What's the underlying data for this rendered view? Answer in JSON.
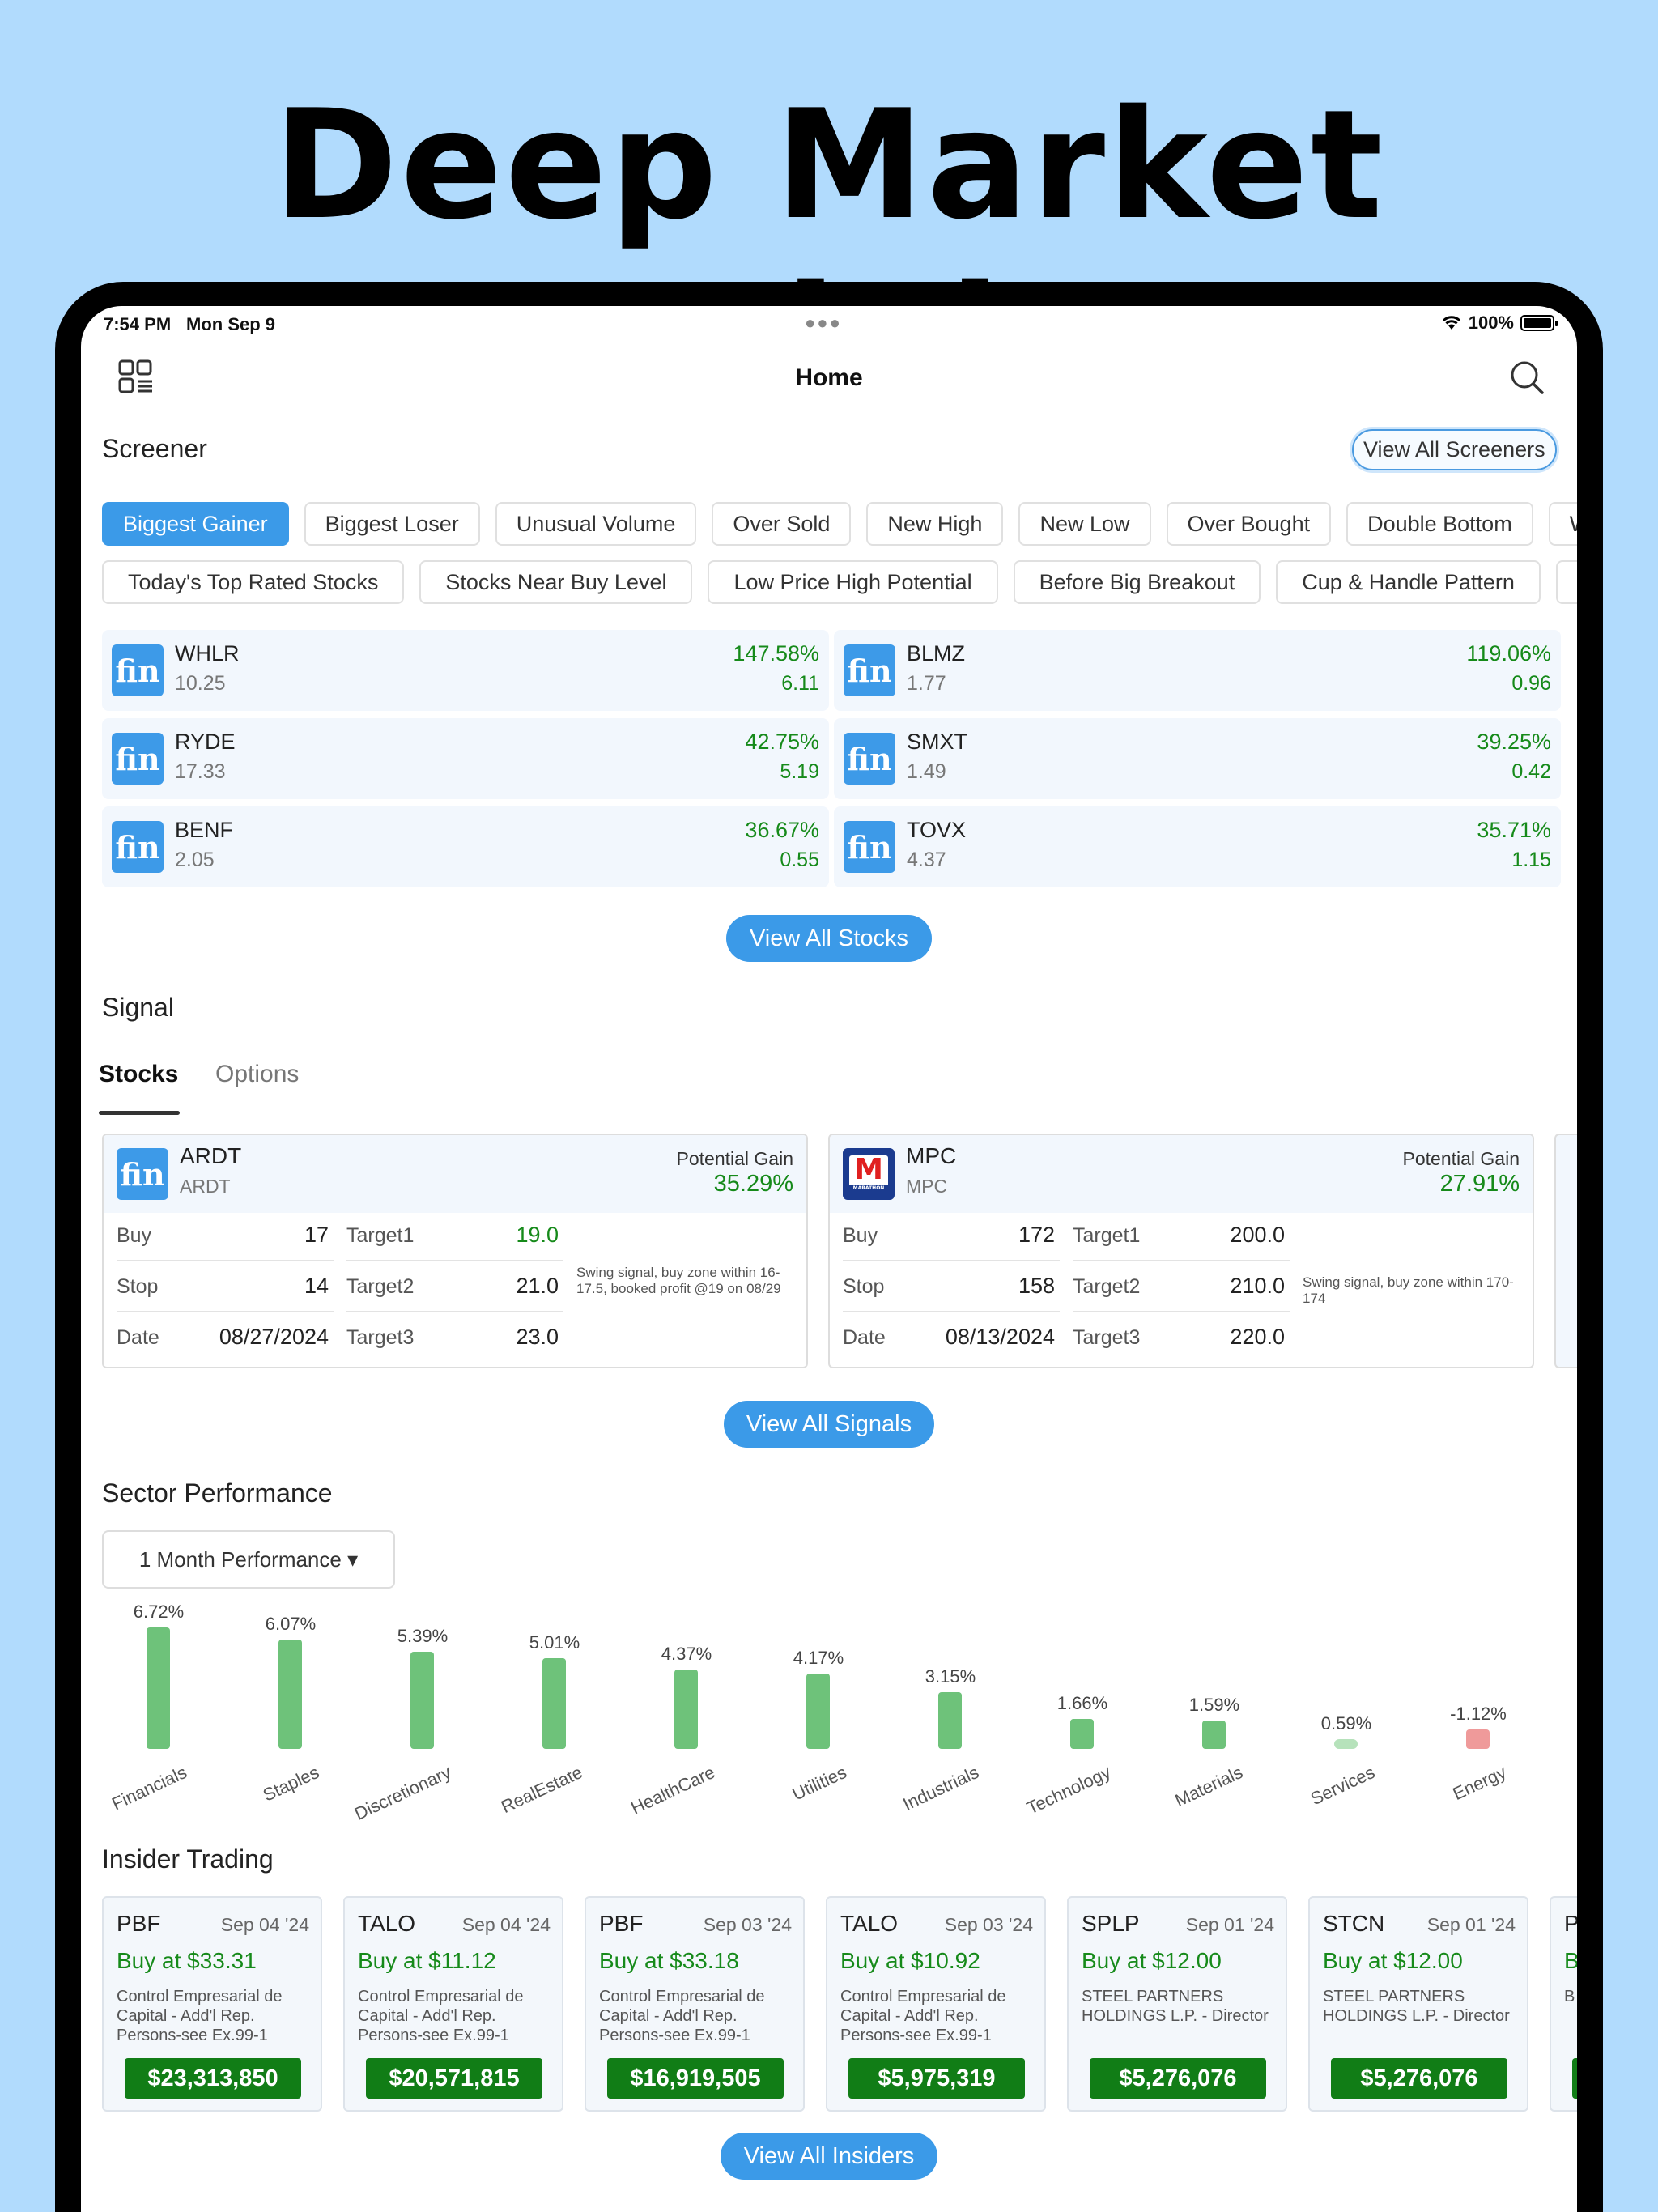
{
  "headline": "Deep Market Insight",
  "status": {
    "time": "7:54 PM",
    "date": "Mon Sep 9",
    "battery": "100%"
  },
  "nav": {
    "title": "Home"
  },
  "screener": {
    "title": "Screener",
    "view_all": "View All Screeners",
    "chips_row1": [
      "Biggest Gainer",
      "Biggest Loser",
      "Unusual Volume",
      "Over Sold",
      "New High",
      "New Low",
      "Over Bought",
      "Double Bottom",
      "W"
    ],
    "chips_row2": [
      "Today's Top Rated Stocks",
      "Stocks Near Buy Level",
      "Low Price High Potential",
      "Before Big Breakout",
      "Cup & Handle Pattern"
    ],
    "stocks": [
      {
        "symbol": "WHLR",
        "price": "10.25",
        "pct": "147.58%",
        "change": "6.11"
      },
      {
        "symbol": "BLMZ",
        "price": "1.77",
        "pct": "119.06%",
        "change": "0.96"
      },
      {
        "symbol": "RYDE",
        "price": "17.33",
        "pct": "42.75%",
        "change": "5.19"
      },
      {
        "symbol": "SMXT",
        "price": "1.49",
        "pct": "39.25%",
        "change": "0.42"
      },
      {
        "symbol": "BENF",
        "price": "2.05",
        "pct": "36.67%",
        "change": "0.55"
      },
      {
        "symbol": "TOVX",
        "price": "4.37",
        "pct": "35.71%",
        "change": "1.15"
      }
    ],
    "logo_text": "fin",
    "view_all_stocks": "View All Stocks"
  },
  "signal": {
    "title": "Signal",
    "tabs": [
      "Stocks",
      "Options"
    ],
    "labels": {
      "buy": "Buy",
      "stop": "Stop",
      "date": "Date",
      "t1": "Target1",
      "t2": "Target2",
      "t3": "Target3",
      "potential_gain": "Potential Gain"
    },
    "cards": [
      {
        "symbol": "ARDT",
        "sub": "ARDT",
        "gain": "35.29%",
        "buy": "17",
        "stop": "14",
        "date": "08/27/2024",
        "t1": "19.0",
        "t2": "21.0",
        "t3": "23.0",
        "t1_color": "#168a1a",
        "note": "Swing signal, buy zone within 16-17.5, booked profit @19 on 08/29"
      },
      {
        "symbol": "MPC",
        "sub": "MPC",
        "gain": "27.91%",
        "buy": "172",
        "stop": "158",
        "date": "08/13/2024",
        "t1": "200.0",
        "t2": "210.0",
        "t3": "220.0",
        "t1_color": "#222222",
        "note": "Swing signal, buy zone within 170-174"
      }
    ],
    "mpc_logo": "M",
    "mpc_logo_sub": "MARATHON",
    "view_all": "View All Signals"
  },
  "sector": {
    "title": "Sector Performance",
    "dropdown": "1 Month Performance ▾",
    "positive_color": "#6ec27a",
    "negative_color": "#ef9a9a"
  },
  "chart_data": {
    "type": "bar",
    "categories": [
      "Financials",
      "Staples",
      "Discretionary",
      "RealEstate",
      "HealthCare",
      "Utilities",
      "Industrials",
      "Technology",
      "Materials",
      "Services",
      "Energy"
    ],
    "values": [
      6.72,
      6.07,
      5.39,
      5.01,
      4.37,
      4.17,
      3.15,
      1.66,
      1.59,
      0.59,
      -1.12
    ],
    "labels": [
      "6.72%",
      "6.07%",
      "5.39%",
      "5.01%",
      "4.37%",
      "4.17%",
      "3.15%",
      "1.66%",
      "1.59%",
      "0.59%",
      "-1.12%"
    ],
    "title": "",
    "xlabel": "",
    "ylabel": ""
  },
  "insider": {
    "title": "Insider Trading",
    "cards": [
      {
        "symbol": "PBF",
        "date": "Sep 04 '24",
        "buy": "Buy at $33.31",
        "who": "Control Empresarial de Capital - Add'l Rep. Persons-see Ex.99-1",
        "amount": "$23,313,850"
      },
      {
        "symbol": "TALO",
        "date": "Sep 04 '24",
        "buy": "Buy at $11.12",
        "who": "Control Empresarial de Capital - Add'l Rep. Persons-see Ex.99-1",
        "amount": "$20,571,815"
      },
      {
        "symbol": "PBF",
        "date": "Sep 03 '24",
        "buy": "Buy at $33.18",
        "who": "Control Empresarial de Capital - Add'l Rep. Persons-see Ex.99-1",
        "amount": "$16,919,505"
      },
      {
        "symbol": "TALO",
        "date": "Sep 03 '24",
        "buy": "Buy at $10.92",
        "who": "Control Empresarial de Capital - Add'l Rep. Persons-see Ex.99-1",
        "amount": "$5,975,319"
      },
      {
        "symbol": "SPLP",
        "date": "Sep 01 '24",
        "buy": "Buy at $12.00",
        "who": "STEEL PARTNERS HOLDINGS L.P. - Director",
        "amount": "$5,276,076"
      },
      {
        "symbol": "STCN",
        "date": "Sep 01 '24",
        "buy": "Buy at $12.00",
        "who": "STEEL PARTNERS HOLDINGS L.P. - Director",
        "amount": "$5,276,076"
      },
      {
        "symbol": "P",
        "date": "",
        "buy": "B",
        "who": "B E",
        "amount": ""
      }
    ],
    "view_all": "View All Insiders"
  }
}
